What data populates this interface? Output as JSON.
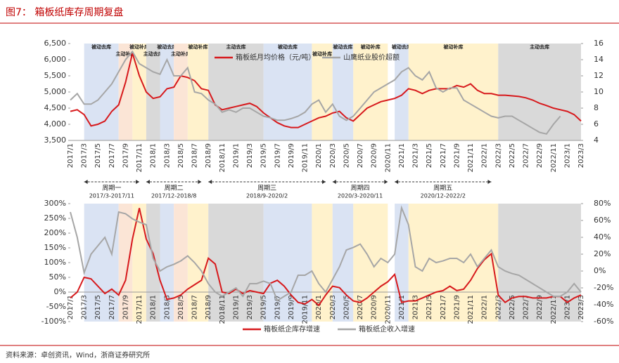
{
  "title": "图7： 箱板纸库存周期复盘",
  "source": "资料来源：卓创资讯，Wind，浙商证券研究所",
  "cycles": [
    {
      "name": "周期一",
      "range": "2017/3-2017/11"
    },
    {
      "name": "周期二",
      "range": "2017/12-2018/8"
    },
    {
      "name": "周期三",
      "range": "2018/9-2020/2"
    },
    {
      "name": "周期四",
      "range": "2020/3-2020/11"
    },
    {
      "name": "周期五",
      "range": "2020/12-2022/2"
    }
  ],
  "chart_data": [
    {
      "type": "line",
      "categories": [
        "2017/1",
        null,
        "2017/3",
        null,
        "2017/5",
        null,
        "2017/7",
        null,
        "2017/9",
        null,
        "2017/11",
        null,
        "2018/1",
        null,
        "2018/3",
        null,
        "2018/5",
        null,
        "2018/7",
        null,
        "2018/9",
        null,
        "2018/11",
        null,
        "2019/1",
        null,
        "2019/3",
        null,
        "2019/5",
        null,
        "2019/7",
        null,
        "2019/9",
        null,
        "2019/11",
        null,
        "2020/1",
        null,
        "2020/3",
        null,
        "2020/5",
        null,
        "2020/7",
        null,
        "2020/9",
        null,
        "2020/11",
        null,
        "2021/1",
        null,
        "2021/3",
        null,
        "2021/5",
        null,
        "2021/7",
        null,
        "2021/9",
        null,
        "2021/11",
        null,
        "2022/1",
        null,
        "2022/3",
        null,
        "2022/5",
        null,
        "2022/7",
        null,
        "2022/9",
        null,
        "2022/11",
        null,
        "2023/1",
        null,
        "2023/3"
      ],
      "series": [
        {
          "name": "箱板纸月均价格（元/吨）",
          "color": "#d7191c",
          "values": [
            4400,
            4450,
            4300,
            3950,
            4000,
            4100,
            4400,
            4600,
            5300,
            6200,
            5500,
            5000,
            4800,
            4850,
            5100,
            5150,
            5500,
            5450,
            5350,
            5100,
            5050,
            4600,
            4450,
            4500,
            4550,
            4600,
            4650,
            4550,
            4350,
            4200,
            4050,
            3950,
            3900,
            3900,
            4000,
            4100,
            4200,
            4250,
            4350,
            4400,
            4200,
            4100,
            4300,
            4500,
            4600,
            4700,
            4750,
            4800,
            4900,
            5100,
            5050,
            4950,
            5050,
            5100,
            5100,
            5100,
            5200,
            5150,
            5250,
            5050,
            4950,
            4950,
            4900,
            4900,
            4880,
            4860,
            4820,
            4750,
            4650,
            4580,
            4500,
            4450,
            4400,
            4300,
            4100
          ]
        },
        {
          "name": "山鹰纸业股价超额",
          "color": "#a6a6a6",
          "axis": "y2",
          "values": [
            9,
            9.8,
            8.5,
            8.5,
            9,
            10,
            11,
            12.5,
            14,
            15,
            13.5,
            13,
            12.5,
            12.2,
            14,
            12,
            12,
            13,
            10,
            9.8,
            9,
            8.5,
            7.5,
            7.8,
            7.5,
            8,
            8,
            7.5,
            7,
            6.8,
            6.5,
            6.5,
            6.7,
            7,
            7.5,
            8.5,
            9,
            7.5,
            8.5,
            7,
            6.5,
            7,
            8,
            9,
            10,
            10.5,
            11,
            11.5,
            12.5,
            13,
            12,
            11.5,
            12.5,
            10.5,
            10,
            10.5,
            10.5,
            9,
            8.5,
            8,
            7.5,
            7,
            6.8,
            7,
            7,
            6.5,
            6,
            5.5,
            5,
            4.8,
            6,
            7,
            null,
            null,
            null
          ]
        }
      ],
      "ylim": [
        3500,
        6500
      ],
      "yticks": [
        {
          "value": 3500,
          "label": "3,500"
        },
        {
          "value": 4000,
          "label": "4,000"
        },
        {
          "value": 4500,
          "label": "4,500"
        },
        {
          "value": 5000,
          "label": "5,000"
        },
        {
          "value": 5500,
          "label": "5,500"
        },
        {
          "value": 6000,
          "label": "6,000"
        },
        {
          "value": 6500,
          "label": "6,500"
        }
      ],
      "y2lim": [
        4,
        16
      ],
      "y2ticks": [
        4,
        6,
        8,
        10,
        12,
        14,
        16
      ],
      "phases": [
        {
          "label": "被动去库",
          "start": "2017/3",
          "end": "2017/8",
          "color": "#dae3f3"
        },
        {
          "label": "主动补库",
          "start": "2017/8",
          "end": "2017/10",
          "color": "#fbe5d6"
        },
        {
          "label": "被动补库",
          "start": "2017/10",
          "end": "2017/12",
          "color": "#fff2cc"
        },
        {
          "label": "主动去库",
          "start": "2017/12",
          "end": "2018/2",
          "color": "#d9d9d9"
        },
        {
          "label": "被动去库",
          "start": "2018/2",
          "end": "2018/4",
          "color": "#dae3f3"
        },
        {
          "label": "主动补库",
          "start": "2018/4",
          "end": "2018/6",
          "color": "#fbe5d6"
        },
        {
          "label": "被动补库",
          "start": "2018/6",
          "end": "2018/9",
          "color": "#fff2cc"
        },
        {
          "label": "主动去库",
          "start": "2018/9",
          "end": "2019/5",
          "color": "#d9d9d9"
        },
        {
          "label": "被动去库",
          "start": "2019/5",
          "end": "2019/12",
          "color": "#dae3f3"
        },
        {
          "label": "被动补库",
          "start": "2019/12",
          "end": "2020/3",
          "color": "#fff2cc"
        },
        {
          "label": "被动去库",
          "start": "2020/3",
          "end": "2020/6",
          "color": "#dae3f3"
        },
        {
          "label": "被动补库",
          "start": "2020/6",
          "end": "2020/11",
          "color": "#fff2cc"
        },
        {
          "label": "被动去库",
          "start": "2020/12",
          "end": "2021/2",
          "color": "#dae3f3"
        },
        {
          "label": "被动补库",
          "start": "2021/2",
          "end": "2022/3",
          "color": "#fff2cc"
        },
        {
          "label": "主动去库",
          "start": "2022/3",
          "end": "2023/3",
          "color": "#d9d9d9"
        }
      ]
    },
    {
      "type": "line",
      "categories": [
        "2017/1",
        null,
        "2017/3",
        null,
        "2017/5",
        null,
        "2017/7",
        null,
        "2017/9",
        null,
        "2017/11",
        null,
        "2018/1",
        null,
        "2018/3",
        null,
        "2018/5",
        null,
        "2018/7",
        null,
        "2018/9",
        null,
        "2018/11",
        null,
        "2019/1",
        null,
        "2019/3",
        null,
        "2019/5",
        null,
        "2019/7",
        null,
        "2019/9",
        null,
        "2019/11",
        null,
        "2020/1",
        null,
        "2020/3",
        null,
        "2020/5",
        null,
        "2020/7",
        null,
        "2020/9",
        null,
        "2020/11",
        null,
        "2021/1",
        null,
        "2021/3",
        null,
        "2021/5",
        null,
        "2021/7",
        null,
        "2021/9",
        null,
        "2021/11",
        null,
        "2022/1",
        null,
        "2022/3",
        null,
        "2022/5",
        null,
        "2022/7",
        null,
        "2022/9",
        null,
        "2022/11",
        null,
        "2023/1",
        null,
        "2023/3"
      ],
      "series": [
        {
          "name": "箱板纸企库存增速",
          "color": "#d7191c",
          "values": [
            -20,
            0,
            50,
            45,
            20,
            -5,
            10,
            -10,
            40,
            180,
            285,
            180,
            130,
            40,
            -25,
            -20,
            -10,
            10,
            25,
            40,
            115,
            95,
            0,
            -5,
            10,
            -5,
            5,
            0,
            -5,
            30,
            40,
            20,
            -10,
            -35,
            -40,
            -25,
            -45,
            -10,
            20,
            15,
            -10,
            -30,
            -35,
            -20,
            0,
            20,
            35,
            60,
            -35,
            -30,
            -30,
            -20,
            -10,
            0,
            5,
            20,
            5,
            10,
            40,
            80,
            110,
            130,
            -10,
            -35,
            -20,
            -15,
            -15,
            -20,
            -20,
            -20,
            -15,
            -15,
            -35,
            -20,
            -10
          ]
        },
        {
          "name": "箱板纸企收入增速",
          "color": "#a6a6a6",
          "axis": "y2",
          "values": [
            70,
            40,
            -2,
            20,
            30,
            40,
            20,
            70,
            68,
            62,
            58,
            55,
            15,
            0,
            5,
            8,
            12,
            18,
            10,
            0,
            -15,
            -25,
            -30,
            -25,
            -20,
            -30,
            -15,
            -15,
            -12,
            -15,
            -35,
            -30,
            -25,
            -5,
            -5,
            0,
            -15,
            -25,
            -10,
            5,
            25,
            28,
            32,
            20,
            5,
            15,
            10,
            20,
            75,
            55,
            5,
            0,
            15,
            10,
            12,
            15,
            15,
            10,
            20,
            5,
            15,
            25,
            5,
            0,
            -3,
            -5,
            -10,
            -15,
            -20,
            -25,
            -30,
            -30,
            -25,
            -15,
            -25
          ]
        }
      ],
      "ylim": [
        -100,
        300
      ],
      "yticks": [
        {
          "value": -100,
          "label": "-100%"
        },
        {
          "value": -50,
          "label": "-50%"
        },
        {
          "value": 0,
          "label": "0%"
        },
        {
          "value": 50,
          "label": "50%"
        },
        {
          "value": 100,
          "label": "100%"
        },
        {
          "value": 150,
          "label": "150%"
        },
        {
          "value": 200,
          "label": "200%"
        },
        {
          "value": 250,
          "label": "250%"
        },
        {
          "value": 300,
          "label": "300%"
        }
      ],
      "y2lim": [
        -60,
        80
      ],
      "y2ticks": [
        {
          "value": -60,
          "label": "-60%"
        },
        {
          "value": -40,
          "label": "-40%"
        },
        {
          "value": -20,
          "label": "-20%"
        },
        {
          "value": 0,
          "label": "0%"
        },
        {
          "value": 20,
          "label": "20%"
        },
        {
          "value": 40,
          "label": "40%"
        },
        {
          "value": 60,
          "label": "60%"
        },
        {
          "value": 80,
          "label": "80%"
        }
      ]
    }
  ]
}
